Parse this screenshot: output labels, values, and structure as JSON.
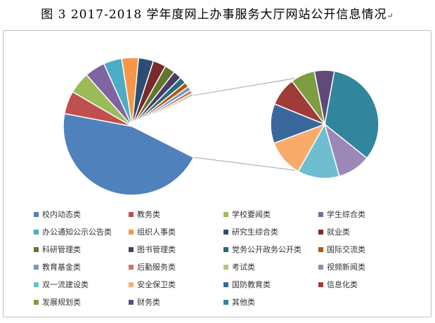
{
  "title": {
    "text": "图 3  2017-2018 学年度网上办事服务大厅网站公开信息情况",
    "mark": "↵"
  },
  "chart_data": {
    "type": "pie",
    "subtype": "pie-of-pie",
    "title": "图 3  2017-2018 学年度网上办事服务大厅网站公开信息情况",
    "legend_position": "bottom",
    "categories": [
      "校内动态类",
      "教务类",
      "学校要闻类",
      "学生综合类",
      "办公通知公示公告类",
      "组织人事类",
      "研究生综合类",
      "就业类",
      "科研管理类",
      "图书管理类",
      "党务公开政务公开类",
      "国际交流类",
      "教育基金类",
      "后勤服务类",
      "考试类",
      "视频新闻类",
      "双一流建设类",
      "安全保卫类",
      "国防教育类",
      "信息化类",
      "发展规划类",
      "财务类",
      "其他类"
    ],
    "colors": [
      "#4f81bd",
      "#c0504d",
      "#9bbb59",
      "#8064a2",
      "#4bacc6",
      "#f79646",
      "#2c4d75",
      "#772c2a",
      "#5f7530",
      "#4d3b62",
      "#276a7c",
      "#b65708",
      "#729aca",
      "#cd7371",
      "#afc97a",
      "#9c87b7",
      "#6fbdd1",
      "#f9ab6b",
      "#3a679c",
      "#9f3b38",
      "#7e9c40",
      "#604a7b",
      "#31859c"
    ],
    "values": [
      46.5,
      5.5,
      5.2,
      4.9,
      4.4,
      4.0,
      3.6,
      3.1,
      2.5,
      2.0,
      1.6,
      1.2,
      1.0,
      0.8,
      0.6,
      1.5,
      1.9,
      1.7,
      1.8,
      1.3,
      1.1,
      0.9,
      5.0
    ],
    "secondary_pie": {
      "categories": [
        "其他类",
        "视频新闻类",
        "双一流建设类",
        "安全保卫类",
        "国防教育类",
        "信息化类",
        "发展规划类",
        "财务类"
      ],
      "values": [
        5.0,
        1.5,
        1.9,
        1.7,
        1.8,
        1.3,
        1.1,
        0.9
      ]
    }
  }
}
